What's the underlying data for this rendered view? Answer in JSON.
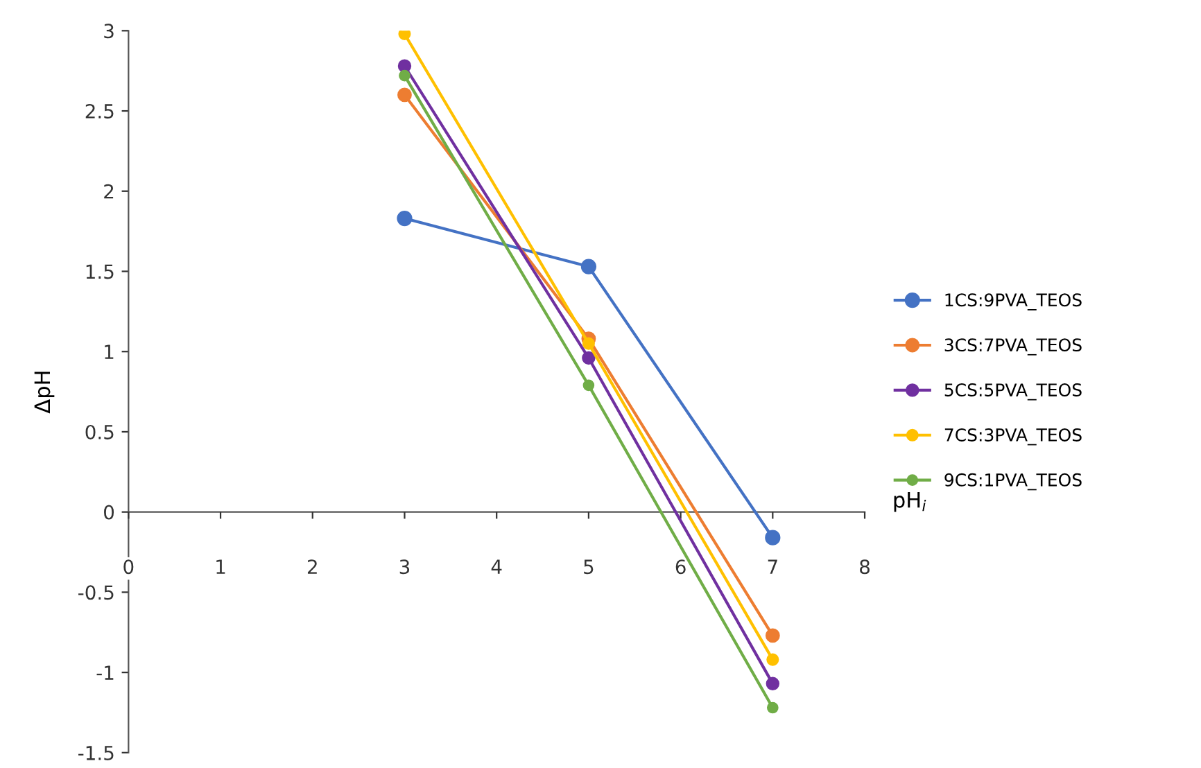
{
  "chart_data": {
    "type": "line",
    "xlabel": "pH$_{i}$",
    "ylabel": "ΔpH",
    "x": [
      3,
      5,
      7
    ],
    "series": [
      {
        "name": "1CS:9PVA_TEOS",
        "color": "#4472c4",
        "values": [
          1.83,
          1.53,
          -0.16
        ]
      },
      {
        "name": "3CS:7PVA_TEOS",
        "color": "#ed7d31",
        "values": [
          2.6,
          1.08,
          -0.77
        ]
      },
      {
        "name": "5CS:5PVA_TEOS",
        "color": "#7030a0",
        "values": [
          2.78,
          0.96,
          -1.07
        ]
      },
      {
        "name": "7CS:3PVA_TEOS",
        "color": "#ffc000",
        "values": [
          2.98,
          1.05,
          -0.92
        ]
      },
      {
        "name": "9CS:1PVA_TEOS",
        "color": "#70ad47",
        "values": [
          2.72,
          0.79,
          -1.22
        ]
      }
    ],
    "xlim": [
      0,
      8
    ],
    "xticks": [
      0,
      1,
      2,
      3,
      4,
      5,
      6,
      7,
      8
    ],
    "ylim": [
      -1.5,
      3
    ],
    "yticks": [
      -1.5,
      -1,
      -0.5,
      0,
      0.5,
      1,
      1.5,
      2,
      2.5,
      3
    ],
    "marker": "circle",
    "line_style": "solid",
    "legend": "right",
    "grid": false
  }
}
